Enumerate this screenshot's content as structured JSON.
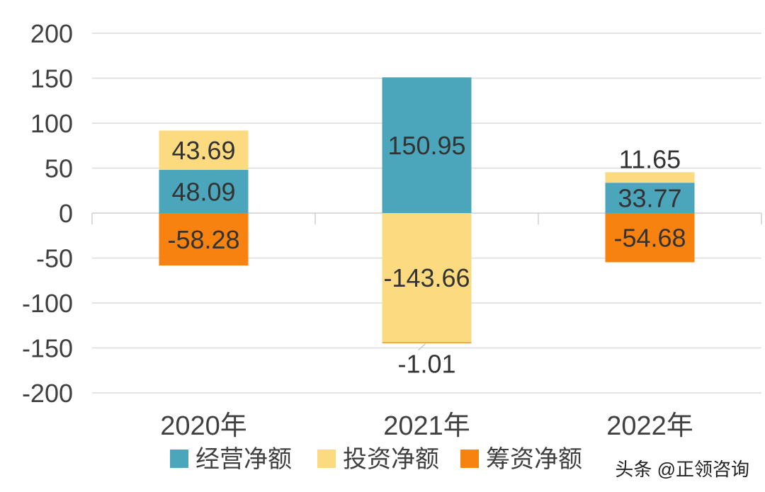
{
  "chart_data": {
    "type": "bar",
    "stacked": true,
    "categories": [
      "2020年",
      "2021年",
      "2022年"
    ],
    "series": [
      {
        "name": "经营净额",
        "color": "#4BA6BB",
        "values": [
          48.09,
          150.95,
          33.77
        ]
      },
      {
        "name": "投资净额",
        "color": "#FBDA80",
        "values": [
          43.69,
          -143.66,
          11.65
        ]
      },
      {
        "name": "筹资净额",
        "color": "#F7820F",
        "values": [
          -58.28,
          -1.01,
          -54.68
        ]
      }
    ],
    "data_labels": [
      [
        "48.09",
        "150.95",
        "33.77"
      ],
      [
        "43.69",
        "-143.66",
        "11.65"
      ],
      [
        "-58.28",
        "-1.01",
        "-54.68"
      ]
    ],
    "ylim": [
      -200,
      200
    ],
    "yticks": [
      "200",
      "150",
      "100",
      "50",
      "0",
      "-50",
      "-100",
      "-150",
      "-200"
    ],
    "grid": true,
    "legend_position": "bottom"
  },
  "watermark": "头条 @正领咨询"
}
